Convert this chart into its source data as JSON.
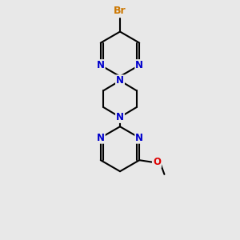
{
  "bg_color": "#e8e8e8",
  "bond_color": "#000000",
  "bond_width": 1.5,
  "N_color": "#0000cc",
  "O_color": "#dd0000",
  "Br_color": "#cc7700",
  "font_size": 8.5,
  "fig_size": [
    3.0,
    3.0
  ],
  "dpi": 100,
  "xlim": [
    0,
    10
  ],
  "ylim": [
    0,
    10
  ]
}
